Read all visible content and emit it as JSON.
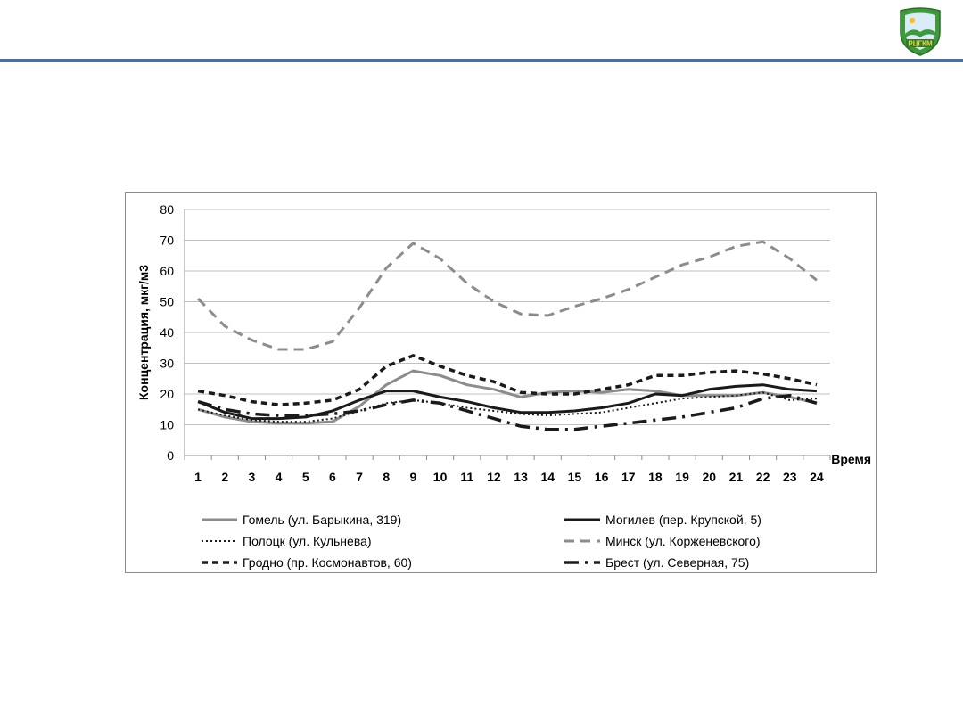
{
  "header": {
    "logo_text": "РЦГКМ",
    "colors": {
      "rule": "#4a6fa0",
      "logo_green": "#3f9a3c",
      "logo_sky": "#d9ecf7"
    }
  },
  "chart_data": {
    "type": "line",
    "title": "",
    "xlabel": "Время",
    "ylabel": "Концентрация, мкг/м3",
    "ylim": [
      0,
      80
    ],
    "yticks": [
      0,
      10,
      20,
      30,
      40,
      50,
      60,
      70,
      80
    ],
    "grid": "horizontal",
    "legend_position": "bottom",
    "x": [
      1,
      2,
      3,
      4,
      5,
      6,
      7,
      8,
      9,
      10,
      11,
      12,
      13,
      14,
      15,
      16,
      17,
      18,
      19,
      20,
      21,
      22,
      23,
      24
    ],
    "series": [
      {
        "name": "Гомель (ул. Барыкина, 319)",
        "color": "#8c8c8c",
        "dash": "solid",
        "width": 3,
        "values": [
          15,
          12.5,
          11,
          10.5,
          10.5,
          11,
          16,
          23,
          27.5,
          26,
          23,
          21.5,
          19,
          20.5,
          21,
          20.5,
          21.5,
          21,
          19.5,
          19.5,
          19.5,
          20.5,
          19,
          17
        ]
      },
      {
        "name": "Могилев (пер. Крупской, 5)",
        "color": "#1a1a1a",
        "dash": "solid",
        "width": 3,
        "values": [
          17.5,
          14,
          12,
          12,
          12.5,
          14.5,
          18,
          21,
          21,
          19,
          17.5,
          15.5,
          14,
          14,
          14.5,
          15.5,
          17,
          20,
          19.5,
          21.5,
          22.5,
          23,
          21.5,
          21
        ]
      },
      {
        "name": "Полоцк (ул. Кульнева)",
        "color": "#1a1a1a",
        "dash": "dot",
        "width": 2,
        "values": [
          15,
          13,
          11.5,
          11,
          11,
          12,
          14.5,
          17,
          18,
          17,
          15.5,
          14.5,
          13.5,
          13,
          13.5,
          14,
          15.5,
          17,
          18.5,
          19,
          19.5,
          20.5,
          18,
          18.5
        ]
      },
      {
        "name": "Минск (ул. Корженевского)",
        "color": "#8c8c8c",
        "dash": "dash",
        "width": 3,
        "values": [
          51,
          42,
          37.5,
          34.5,
          34.5,
          37,
          48,
          61,
          69,
          64,
          56,
          50,
          46,
          45.5,
          48.5,
          51,
          54,
          58,
          62,
          64.5,
          68,
          69.5,
          64,
          57
        ]
      },
      {
        "name": "Гродно (пр. Космонавтов, 60)",
        "color": "#1a1a1a",
        "dash": "dash",
        "width": 3.5,
        "values": [
          21,
          19.5,
          17.5,
          16.5,
          17,
          18,
          21.5,
          29,
          32.5,
          29,
          26,
          24,
          20.5,
          20,
          20,
          21.5,
          23,
          26,
          26,
          27,
          27.5,
          26.5,
          25,
          23
        ]
      },
      {
        "name": "Брест (ул. Северная, 75)",
        "color": "#1a1a1a",
        "dash": "dashdot",
        "width": 3.5,
        "values": [
          17.5,
          15,
          13.5,
          13,
          13,
          13.5,
          14.5,
          16.5,
          18,
          17,
          14.5,
          12,
          9.5,
          8.5,
          8.5,
          9.5,
          10.5,
          11.5,
          12.5,
          14,
          15.5,
          18.5,
          19.5,
          17
        ]
      }
    ]
  }
}
